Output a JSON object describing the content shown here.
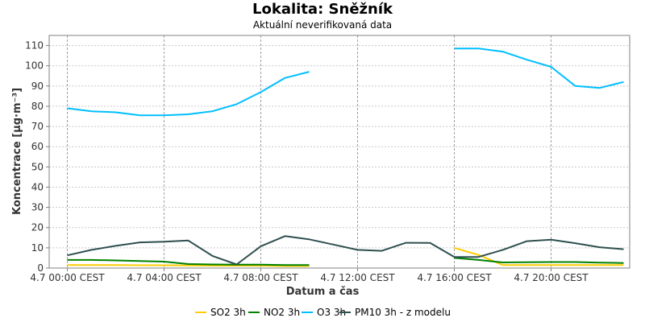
{
  "chart_data": {
    "type": "line",
    "title": "Lokalita: Sněžník",
    "subtitle": "Aktuální neverifikovaná data",
    "xlabel": "Datum a čas",
    "ylabel": "Koncentrace [µg·m⁻³]",
    "ylim": [
      0,
      115
    ],
    "yticks": [
      0,
      10,
      20,
      30,
      40,
      50,
      60,
      70,
      80,
      90,
      100,
      110
    ],
    "xlim": [
      -0.75,
      23.25
    ],
    "xticks": [
      {
        "x": 0,
        "label": "4.7 00:00 CEST"
      },
      {
        "x": 4,
        "label": "4.7 04:00 CEST"
      },
      {
        "x": 8,
        "label": "4.7 08:00 CEST"
      },
      {
        "x": 12,
        "label": "4.7 12:00 CEST"
      },
      {
        "x": 16,
        "label": "4.7 16:00 CEST"
      },
      {
        "x": 20,
        "label": "4.7 20:00 CEST"
      }
    ],
    "x_unit": "hour of 4.7",
    "grid": true,
    "legend_position": "bottom",
    "series": [
      {
        "name": "SO2 3h",
        "color": "#FFCC00",
        "points": [
          [
            0,
            1.5
          ],
          [
            1,
            1.5
          ],
          [
            2,
            1.5
          ],
          [
            3,
            1.4
          ],
          [
            4,
            1.4
          ],
          [
            5,
            1.3
          ],
          [
            6,
            1.2
          ],
          [
            7,
            1.2
          ],
          [
            8,
            1.2
          ],
          [
            9,
            1.0
          ],
          [
            10,
            1.0
          ],
          null,
          [
            16,
            10.0
          ],
          [
            17,
            6.5
          ],
          [
            18,
            1.5
          ],
          [
            19,
            1.5
          ],
          [
            20,
            1.5
          ],
          [
            21,
            1.5
          ],
          [
            22,
            1.5
          ],
          [
            23,
            1.5
          ]
        ]
      },
      {
        "name": "NO2 3h",
        "color": "#008000",
        "points": [
          [
            0,
            4.0
          ],
          [
            1,
            4.0
          ],
          [
            2,
            3.8
          ],
          [
            3,
            3.5
          ],
          [
            4,
            3.2
          ],
          [
            5,
            2.0
          ],
          [
            6,
            1.8
          ],
          [
            7,
            1.7
          ],
          [
            8,
            1.7
          ],
          [
            9,
            1.5
          ],
          [
            10,
            1.5
          ],
          null,
          [
            16,
            5.0
          ],
          [
            17,
            4.0
          ],
          [
            18,
            2.8
          ],
          [
            19,
            2.9
          ],
          [
            20,
            3.0
          ],
          [
            21,
            3.0
          ],
          [
            22,
            2.7
          ],
          [
            23,
            2.5
          ]
        ]
      },
      {
        "name": "O3 3h",
        "color": "#00BFFF",
        "points": [
          [
            0,
            79
          ],
          [
            1,
            77.5
          ],
          [
            2,
            77
          ],
          [
            3,
            75.5
          ],
          [
            4,
            75.5
          ],
          [
            5,
            76
          ],
          [
            6,
            77.5
          ],
          [
            7,
            81
          ],
          [
            8,
            87
          ],
          [
            9,
            94
          ],
          [
            10,
            97
          ],
          null,
          [
            16,
            108.5
          ],
          [
            17,
            108.5
          ],
          [
            18,
            107
          ],
          [
            19,
            103
          ],
          [
            20,
            99.5
          ],
          [
            21,
            90
          ],
          [
            22,
            89
          ],
          [
            23,
            92
          ]
        ]
      },
      {
        "name": "PM10 3h - z modelu",
        "color": "#2F4F4F",
        "points": [
          [
            0,
            6.3
          ],
          [
            1,
            9
          ],
          [
            2,
            11
          ],
          [
            3,
            12.7
          ],
          [
            4,
            13
          ],
          [
            5,
            13.6
          ],
          [
            6,
            6
          ],
          [
            7,
            1.8
          ],
          [
            8,
            10.8
          ],
          [
            9,
            15.8
          ],
          [
            10,
            14.2
          ],
          [
            11,
            11.6
          ],
          [
            12,
            9
          ],
          [
            13,
            8.5
          ],
          [
            14,
            12.5
          ],
          [
            15,
            12.4
          ],
          [
            16,
            5.5
          ],
          [
            17,
            5.5
          ],
          [
            18,
            9
          ],
          [
            19,
            13.3
          ],
          [
            20,
            14
          ],
          [
            21,
            12.3
          ],
          [
            22,
            10.3
          ],
          [
            23,
            9.3
          ]
        ]
      }
    ]
  }
}
